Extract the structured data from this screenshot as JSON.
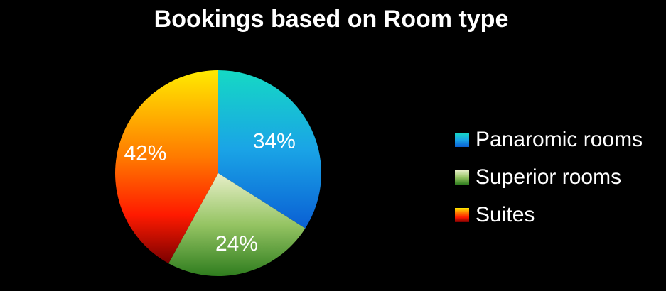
{
  "chart_data": {
    "type": "pie",
    "title": "Bookings based on Room type",
    "categories": [
      "Panaromic rooms",
      "Superior rooms",
      "Suites"
    ],
    "values": [
      34,
      24,
      42
    ],
    "data_labels": [
      "34%",
      "24%",
      "42%"
    ],
    "legend_position": "right",
    "colors": [
      "#1a9fe0",
      "#7fb24f",
      "#ff8000"
    ]
  }
}
